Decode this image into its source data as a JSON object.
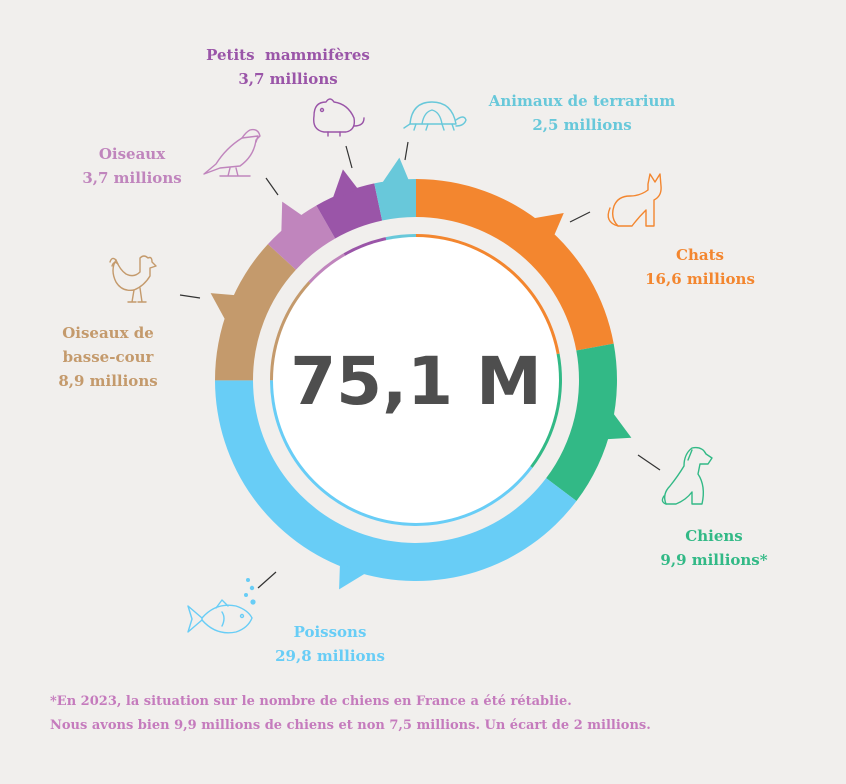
{
  "chart_data": {
    "type": "donut",
    "unit": "millions",
    "total_label": "75,1 M",
    "series": [
      {
        "name": "Chats",
        "value": 16.6,
        "value_label": "16,6 millions",
        "color": "#f3862f",
        "icon": "cat-icon"
      },
      {
        "name": "Chiens",
        "value": 9.9,
        "value_label": "9,9 millions*",
        "color": "#32b986",
        "icon": "dog-icon"
      },
      {
        "name": "Poissons",
        "value": 29.8,
        "value_label": "29,8 millions",
        "color": "#68cdf6",
        "icon": "fish-icon"
      },
      {
        "name": "Oiseaux de basse-cour",
        "label_lines": [
          "Oiseaux de",
          "basse-cour"
        ],
        "value": 8.9,
        "value_label": "8,9 millions",
        "color": "#c49a6c",
        "icon": "rooster-icon"
      },
      {
        "name": "Oiseaux",
        "value": 3.7,
        "value_label": "3,7 millions",
        "color": "#c085bd",
        "icon": "bird-icon"
      },
      {
        "name": "Petits  mammifères",
        "value": 3.7,
        "value_label": "3,7 millions",
        "color": "#9a55a8",
        "icon": "mouse-icon"
      },
      {
        "name": "Animaux de terrarium",
        "value": 2.5,
        "value_label": "2,5 millions",
        "color": "#68c8da",
        "icon": "turtle-icon"
      }
    ]
  },
  "footnote": {
    "line1": "*En 2023, la situation sur le nombre de  chiens en France a été rétablie.",
    "line2": "Nous avons bien 9,9 millions de chiens et non 7,5 millions. Un écart de 2 millions."
  }
}
